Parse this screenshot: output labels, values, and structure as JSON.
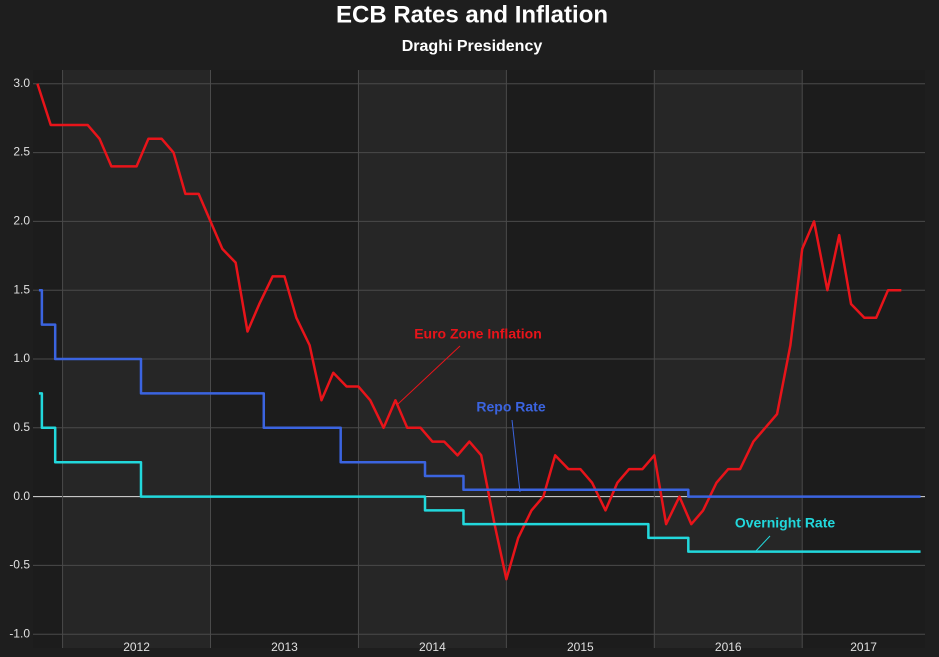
{
  "chart_data": {
    "type": "line",
    "title": "ECB Rates and Inflation",
    "subtitle": "Draghi Presidency",
    "xlim": [
      2011.8,
      2017.83
    ],
    "xticks": [
      {
        "value": 2012,
        "label": "2012"
      },
      {
        "value": 2013,
        "label": "2013"
      },
      {
        "value": 2014,
        "label": "2014"
      },
      {
        "value": 2015,
        "label": "2015"
      },
      {
        "value": 2016,
        "label": "2016"
      },
      {
        "value": 2017,
        "label": "2017"
      }
    ],
    "ylim": [
      -1.1,
      3.1
    ],
    "yticks": [
      {
        "value": -1,
        "label": "-1.0"
      },
      {
        "value": -0.5,
        "label": "-0.5"
      },
      {
        "value": 0,
        "label": "0.0"
      },
      {
        "value": 0.5,
        "label": "0.5"
      },
      {
        "value": 1,
        "label": "1.0"
      },
      {
        "value": 1.5,
        "label": "1.5"
      },
      {
        "value": 2,
        "label": "2.0"
      },
      {
        "value": 2.5,
        "label": "2.5"
      },
      {
        "value": 3,
        "label": "3.0"
      }
    ],
    "grid": true,
    "series": [
      {
        "name": "Euro Zone Inflation",
        "color": "#e8141a",
        "step": false,
        "x": [
          2011.83,
          2011.92,
          2012,
          2012.08,
          2012.17,
          2012.25,
          2012.33,
          2012.42,
          2012.5,
          2012.58,
          2012.67,
          2012.75,
          2012.83,
          2012.92,
          2013,
          2013.08,
          2013.17,
          2013.25,
          2013.33,
          2013.42,
          2013.5,
          2013.58,
          2013.67,
          2013.75,
          2013.83,
          2013.92,
          2014,
          2014.08,
          2014.17,
          2014.25,
          2014.33,
          2014.42,
          2014.5,
          2014.58,
          2014.67,
          2014.75,
          2014.83,
          2014.92,
          2015,
          2015.08,
          2015.17,
          2015.25,
          2015.33,
          2015.42,
          2015.5,
          2015.58,
          2015.67,
          2015.75,
          2015.83,
          2015.92,
          2016,
          2016.08,
          2016.17,
          2016.25,
          2016.33,
          2016.42,
          2016.5,
          2016.58,
          2016.67,
          2016.75,
          2016.83,
          2016.92,
          2017,
          2017.08,
          2017.17,
          2017.25,
          2017.33,
          2017.42,
          2017.5,
          2017.58,
          2017.67
        ],
        "values": [
          3.0,
          2.7,
          2.7,
          2.7,
          2.7,
          2.6,
          2.4,
          2.4,
          2.4,
          2.6,
          2.6,
          2.5,
          2.2,
          2.2,
          2.0,
          1.8,
          1.7,
          1.2,
          1.4,
          1.6,
          1.6,
          1.3,
          1.1,
          0.7,
          0.9,
          0.8,
          0.8,
          0.7,
          0.5,
          0.7,
          0.5,
          0.5,
          0.4,
          0.4,
          0.3,
          0.4,
          0.3,
          -0.2,
          -0.6,
          -0.3,
          -0.1,
          0.0,
          0.3,
          0.2,
          0.2,
          0.1,
          -0.1,
          0.1,
          0.2,
          0.2,
          0.3,
          -0.2,
          0.0,
          -0.2,
          -0.1,
          0.1,
          0.2,
          0.2,
          0.4,
          0.5,
          0.6,
          1.1,
          1.8,
          2.0,
          1.5,
          1.9,
          1.4,
          1.3,
          1.3,
          1.5,
          1.5
        ]
      },
      {
        "name": "Repo Rate",
        "color": "#3b64e0",
        "step": true,
        "x": [
          2011.84,
          2011.86,
          2011.95,
          2012.53,
          2013.36,
          2013.88,
          2014.45,
          2014.71,
          2016.23,
          2017.8
        ],
        "values": [
          1.5,
          1.25,
          1.0,
          0.75,
          0.5,
          0.25,
          0.15,
          0.05,
          0.0,
          0.0
        ]
      },
      {
        "name": "Overnight Rate",
        "color": "#22d8dc",
        "step": true,
        "x": [
          2011.84,
          2011.86,
          2011.95,
          2012.53,
          2014.45,
          2014.71,
          2015.96,
          2016.23,
          2017.8
        ],
        "values": [
          0.75,
          0.5,
          0.25,
          0.0,
          -0.1,
          -0.2,
          -0.3,
          -0.4,
          -0.4
        ]
      }
    ]
  }
}
